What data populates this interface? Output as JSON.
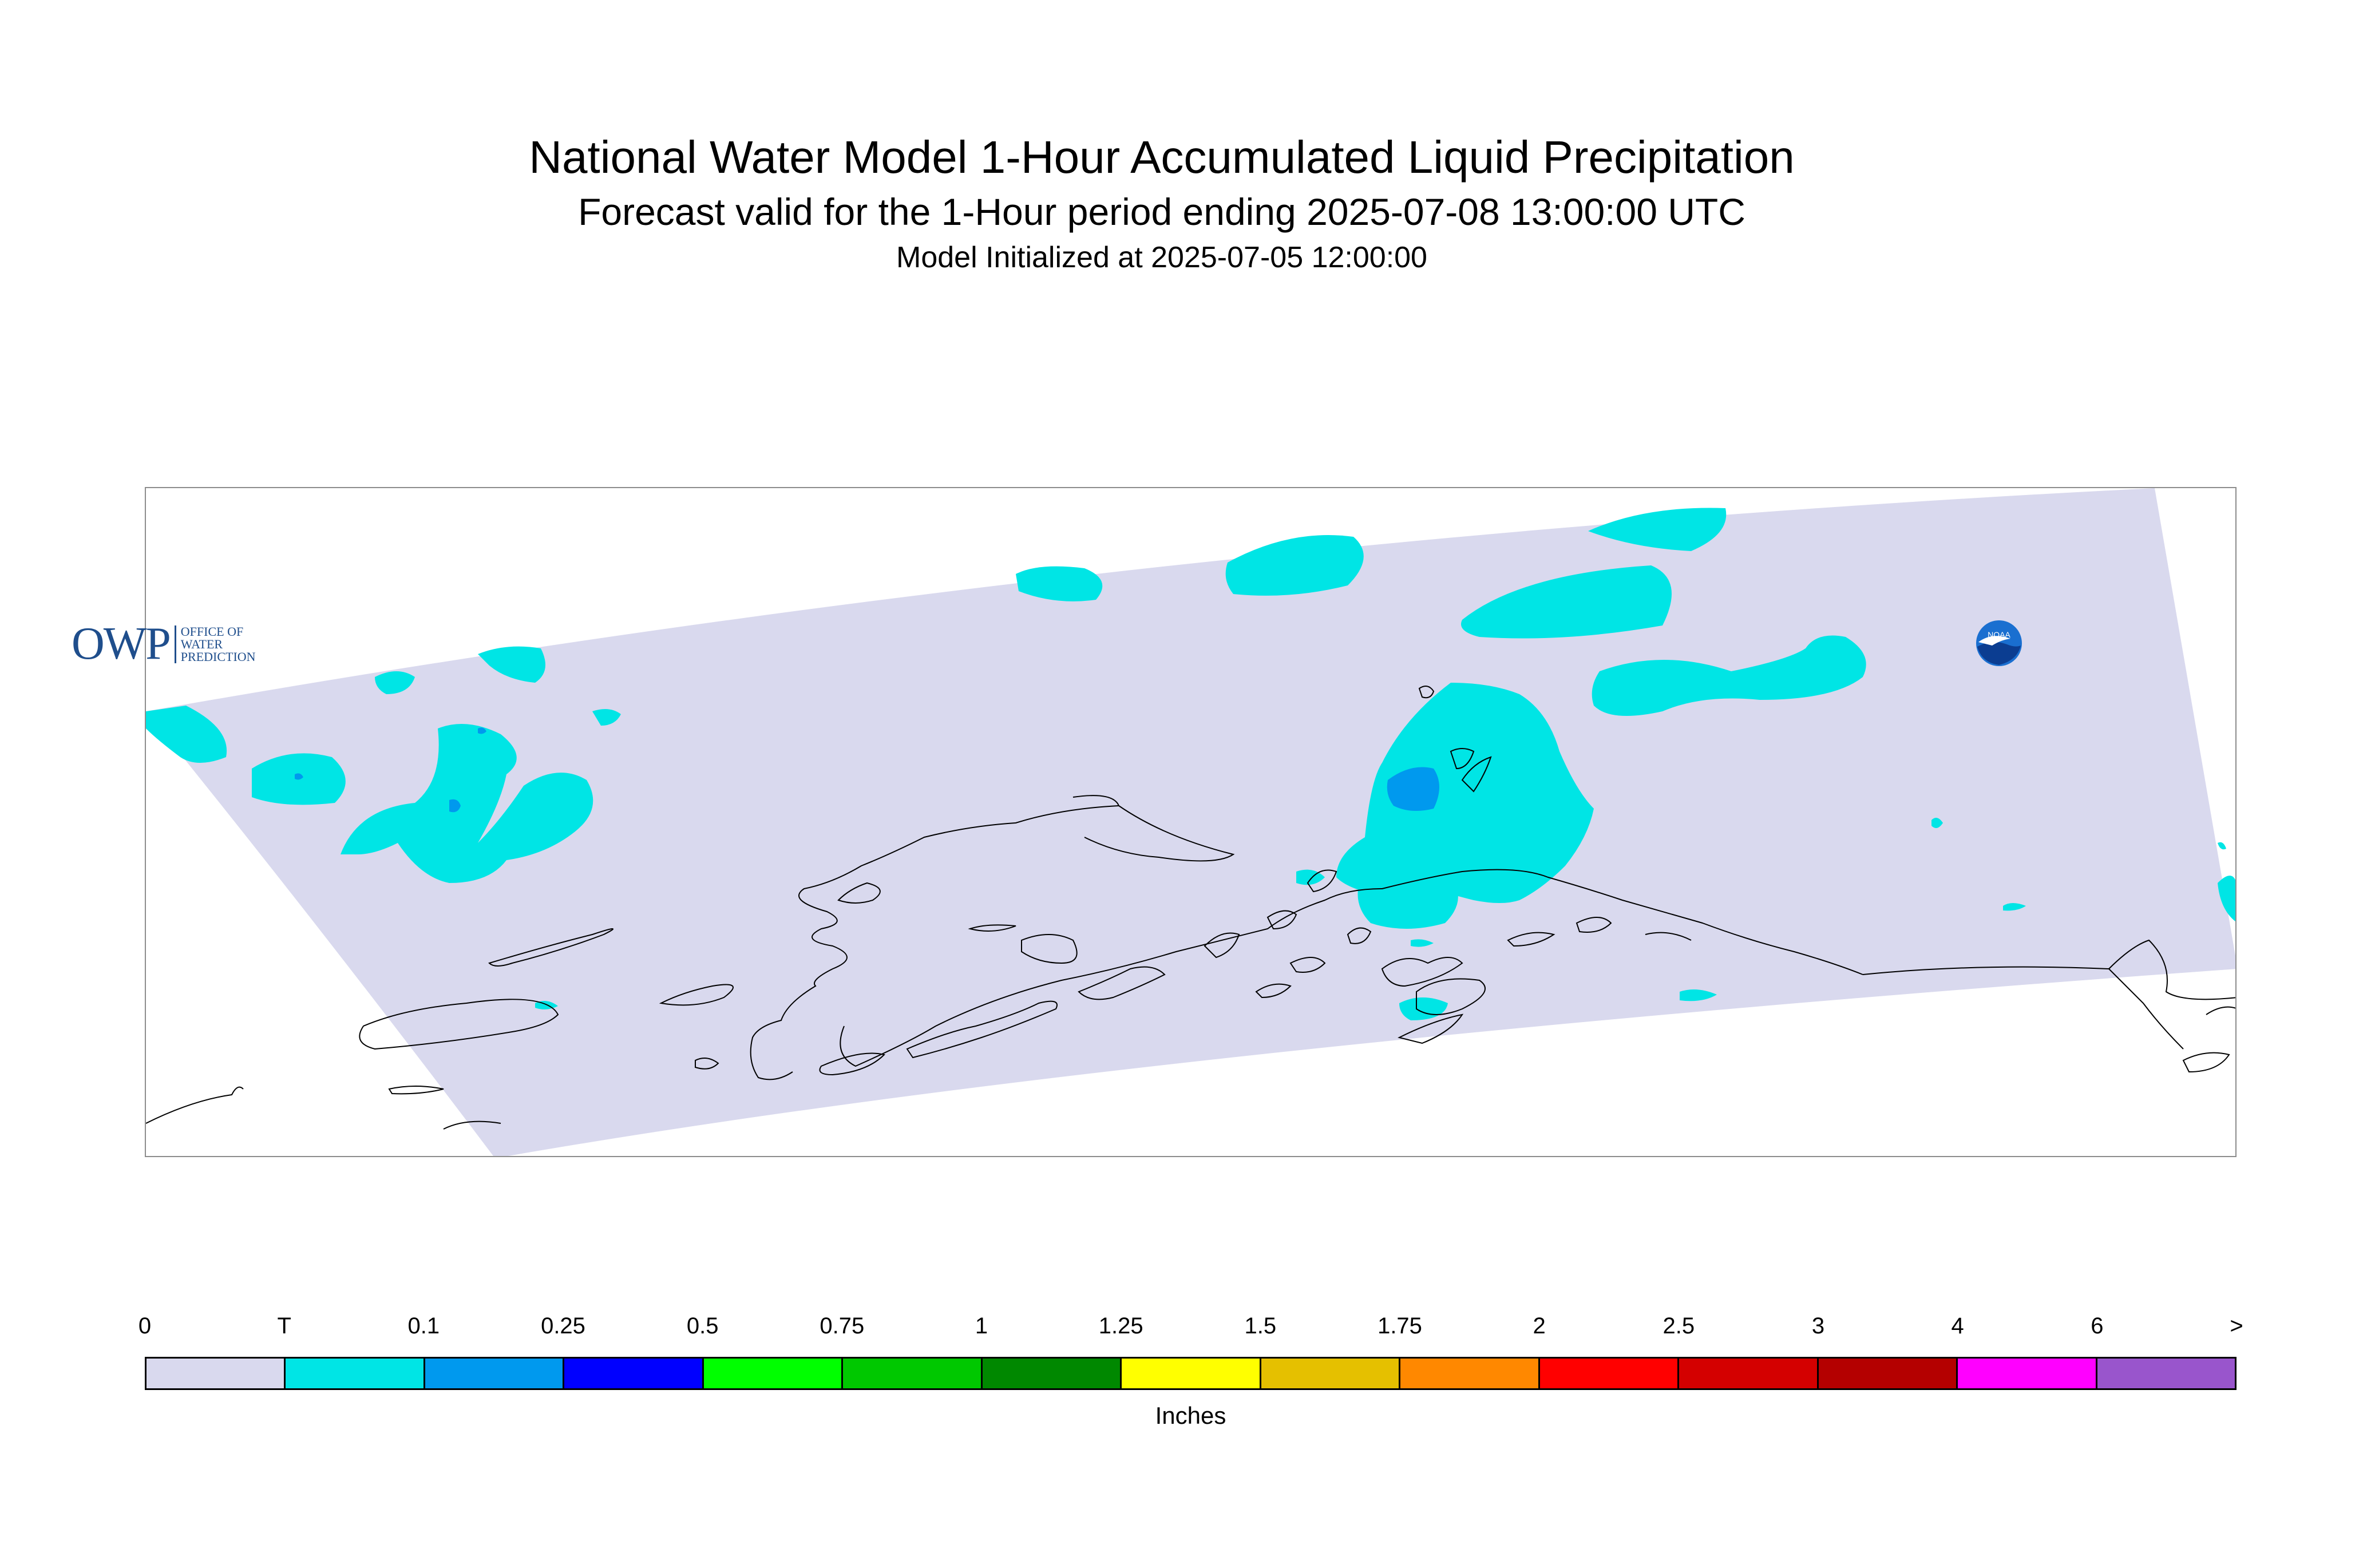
{
  "header": {
    "title": "National Water Model 1-Hour Accumulated Liquid Precipitation",
    "subtitle": "Forecast valid for the 1-Hour period ending 2025-07-08 13:00:00 UTC",
    "initialized": "Model Initialized at 2025-07-05 12:00:00"
  },
  "map": {
    "region": "Alaska",
    "domain_color": "#d9d9ee",
    "coastline_color": "#000000",
    "precip_colors": {
      "trace": "#00e5e5",
      "light": "#0099ee"
    }
  },
  "logos": {
    "owp": {
      "mark": "OWP",
      "text_lines": [
        "OFFICE OF",
        "WATER",
        "PREDICTION"
      ]
    },
    "noaa": {
      "text": "NOAA"
    }
  },
  "legend": {
    "units": "Inches",
    "tick_labels": [
      "0",
      "T",
      "0.1",
      "0.25",
      "0.5",
      "0.75",
      "1",
      "1.25",
      "1.5",
      "1.75",
      "2",
      "2.5",
      "3",
      "4",
      "6",
      ">"
    ],
    "colors": [
      "#d9d9ee",
      "#00e5e5",
      "#0099ee",
      "#0000ff",
      "#00ff00",
      "#00c800",
      "#008800",
      "#ffff00",
      "#e5c000",
      "#ff8800",
      "#ff0000",
      "#d40000",
      "#b40000",
      "#ff00ff",
      "#9955cc"
    ]
  }
}
